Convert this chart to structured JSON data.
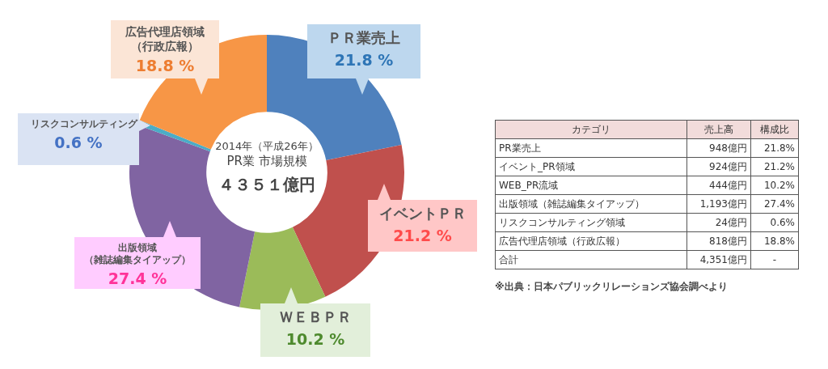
{
  "chart_data": {
    "type": "donut",
    "title": "2014年（平成26年）",
    "subtitle": "PR業 市場規模",
    "categories": [
      "ＰＲ業売上",
      "イベントＰＲ",
      "ＷＥＢＰＲ",
      "出版領域（雑誌編集タイアップ）",
      "リスクコンサルティング",
      "広告代理店領域（行政広報）"
    ],
    "values": [
      21.8,
      21.2,
      10.2,
      27.4,
      0.6,
      18.8
    ],
    "colors": [
      "#4f81bd",
      "#c0504d",
      "#9bbb59",
      "#8064a2",
      "#4bacc6",
      "#f79646"
    ],
    "value_labels": [
      "21.8 %",
      "21.2 %",
      "10.2 %",
      "27.4 %",
      "0.6 %",
      "18.8 %"
    ],
    "legend": false,
    "annotations": [
      "４３５１億円",
      "カテゴリ",
      "売上高",
      "構成比",
      "PR業売上",
      "948億円",
      "21.8%",
      "イベント_PR領域",
      "924億円",
      "21.2%",
      "WEB_PR流域",
      "444億円",
      "10.2%",
      "出版領域（雑誌編集タイアップ）",
      "1,193億円",
      "27.4%",
      "リスクコンサルティング領域",
      "24億円",
      "0.6%",
      "広告代理店領域（行政広報）",
      "818億円",
      "18.8%",
      "合計",
      "4,351億円",
      "-",
      "※出典：日本パブリックリレーションズ協会調べより"
    ]
  }
}
